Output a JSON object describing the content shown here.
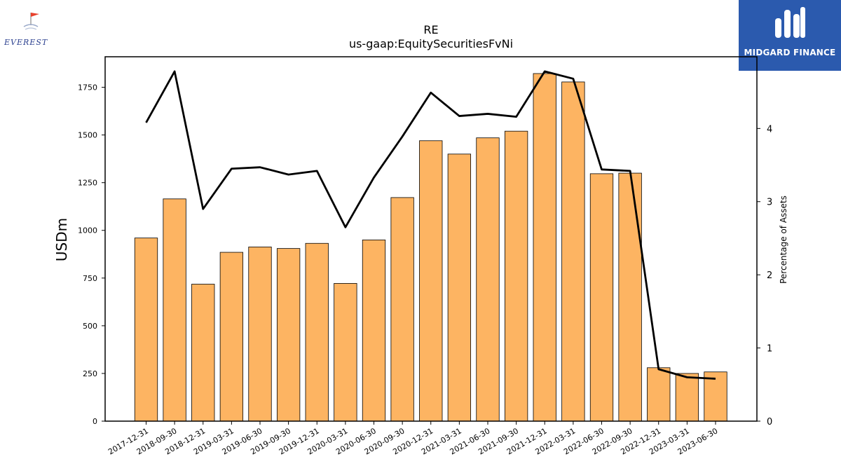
{
  "logos": {
    "left_brand": "EVEREST",
    "right_brand": "MIDGARD FINANCE"
  },
  "colors": {
    "bar_fill": "#fdb462",
    "bar_stroke": "#000000",
    "line": "#000000",
    "logo_right_bg": "#2b5aae",
    "flag": "#e8412c"
  },
  "chart_data": {
    "type": "bar",
    "title": "RE",
    "subtitle": "us-gaap:EquitySecuritiesFvNi",
    "ylabel": "USDm",
    "y2label": "Percentage of Assets",
    "ylim": [
      0,
      1910
    ],
    "y2lim": [
      0,
      4.98
    ],
    "yticks": [
      0,
      250,
      500,
      750,
      1000,
      1250,
      1500,
      1750
    ],
    "y2ticks": [
      0,
      1,
      2,
      3,
      4
    ],
    "grid": false,
    "categories": [
      "2017-12-31",
      "2018-09-30",
      "2018-12-31",
      "2019-03-31",
      "2019-06-30",
      "2019-09-30",
      "2019-12-31",
      "2020-03-31",
      "2020-06-30",
      "2020-09-30",
      "2020-12-31",
      "2021-03-31",
      "2021-06-30",
      "2021-09-30",
      "2021-12-31",
      "2022-03-31",
      "2022-06-30",
      "2022-09-30",
      "2022-12-31",
      "2023-03-31",
      "2023-06-30"
    ],
    "series": [
      {
        "kind": "bar",
        "axis": "left",
        "values": [
          960,
          1165,
          718,
          885,
          913,
          905,
          932,
          722,
          950,
          1172,
          1470,
          1400,
          1485,
          1520,
          1822,
          1778,
          1297,
          1300,
          280,
          250,
          258
        ]
      },
      {
        "kind": "line",
        "axis": "right",
        "values": [
          4.08,
          4.78,
          2.9,
          3.45,
          3.47,
          3.37,
          3.42,
          2.65,
          3.33,
          3.89,
          4.49,
          4.17,
          4.2,
          4.16,
          4.78,
          4.68,
          3.44,
          3.42,
          0.71,
          0.6,
          0.58
        ]
      }
    ]
  }
}
